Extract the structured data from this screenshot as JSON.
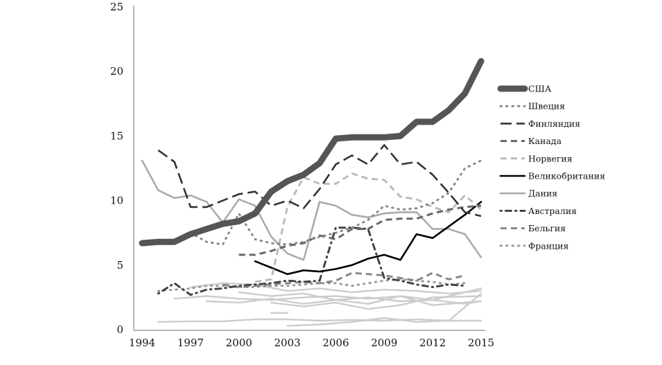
{
  "chart_data": {
    "type": "line",
    "title": "",
    "xlabel": "",
    "ylabel": "",
    "xlim": [
      1994,
      2015
    ],
    "ylim": [
      0,
      25
    ],
    "x_ticks": [
      "1994",
      "1997",
      "2000",
      "2003",
      "2006",
      "2009",
      "2012",
      "2015"
    ],
    "y_ticks": [
      "0",
      "5",
      "10",
      "15",
      "20",
      "25"
    ],
    "grid": false,
    "legend_position": "right",
    "series": [
      {
        "name": "США",
        "color": "#555555",
        "style": "thick-solid",
        "x": [
          1994,
          1995,
          1996,
          1997,
          1998,
          1999,
          2000,
          2001,
          2002,
          2003,
          2004,
          2005,
          2006,
          2007,
          2008,
          2009,
          2010,
          2011,
          2012,
          2013,
          2014,
          2015
        ],
        "y": [
          6.7,
          6.8,
          6.8,
          7.4,
          7.8,
          8.2,
          8.4,
          9.0,
          10.7,
          11.5,
          12.0,
          12.9,
          14.8,
          14.9,
          14.9,
          14.9,
          15.0,
          16.1,
          16.1,
          17.0,
          18.3,
          20.8
        ]
      },
      {
        "name": "Швеция",
        "color": "#888888",
        "style": "dotted",
        "x": [
          1997,
          1998,
          1999,
          2000,
          2001,
          2002,
          2003,
          2004,
          2005,
          2006,
          2007,
          2008,
          2009,
          2010,
          2011,
          2012,
          2013,
          2014,
          2015
        ],
        "y": [
          7.5,
          6.8,
          6.6,
          9.0,
          7.0,
          6.7,
          6.6,
          6.8,
          7.2,
          7.5,
          7.9,
          8.5,
          9.6,
          9.3,
          9.4,
          9.8,
          10.6,
          12.5,
          13.1
        ]
      },
      {
        "name": "Финляндия",
        "color": "#333333",
        "style": "long-dash",
        "x": [
          1995,
          1996,
          1997,
          1998,
          1999,
          2000,
          2001,
          2002,
          2003,
          2004,
          2005,
          2006,
          2007,
          2008,
          2009,
          2010,
          2011,
          2012,
          2013,
          2014,
          2015
        ],
        "y": [
          13.9,
          13.0,
          9.5,
          9.5,
          10.0,
          10.5,
          10.7,
          9.6,
          10.0,
          9.4,
          10.9,
          12.8,
          13.5,
          12.8,
          14.3,
          12.8,
          13.0,
          12.0,
          10.6,
          9.1,
          8.8
        ]
      },
      {
        "name": "Канада",
        "color": "#666666",
        "style": "dash",
        "x": [
          2000,
          2001,
          2002,
          2003,
          2004,
          2005,
          2006,
          2007,
          2008,
          2009,
          2010,
          2011,
          2012,
          2013,
          2014,
          2015
        ],
        "y": [
          5.8,
          5.8,
          6.1,
          6.5,
          6.7,
          7.3,
          7.0,
          7.8,
          7.8,
          8.5,
          8.6,
          8.6,
          9.0,
          9.3,
          9.5,
          9.6
        ]
      },
      {
        "name": "Норвегия",
        "color": "#bbbbbb",
        "style": "dash",
        "x": [
          2001,
          2002,
          2003,
          2004,
          2005,
          2006,
          2007,
          2008,
          2009,
          2010,
          2011,
          2012,
          2013,
          2014,
          2015
        ],
        "y": [
          3.7,
          3.9,
          9.5,
          11.8,
          11.3,
          11.3,
          12.1,
          11.7,
          11.6,
          10.3,
          10.1,
          9.5,
          9.1,
          10.4,
          9.3
        ]
      },
      {
        "name": "Великобритания",
        "color": "#000000",
        "style": "solid",
        "x": [
          2001,
          2002,
          2003,
          2004,
          2005,
          2006,
          2007,
          2008,
          2009,
          2010,
          2011,
          2012,
          2013,
          2014,
          2015
        ],
        "y": [
          5.3,
          4.8,
          4.3,
          4.6,
          4.5,
          4.7,
          5.0,
          5.5,
          5.8,
          5.4,
          7.4,
          7.1,
          8.0,
          8.9,
          9.9
        ]
      },
      {
        "name": "Дания",
        "color": "#aaaaaa",
        "style": "solid",
        "x": [
          1994,
          1995,
          1996,
          1997,
          1998,
          1999,
          2000,
          2001,
          2002,
          2003,
          2004,
          2005,
          2006,
          2007,
          2008,
          2009,
          2010,
          2011,
          2012,
          2013,
          2014,
          2015
        ],
        "y": [
          13.1,
          10.8,
          10.2,
          10.4,
          9.9,
          8.3,
          10.1,
          9.6,
          7.2,
          5.9,
          5.4,
          9.9,
          9.6,
          8.9,
          8.7,
          9.0,
          9.1,
          9.1,
          7.8,
          7.8,
          7.4,
          5.6
        ]
      },
      {
        "name": "Австралия",
        "color": "#444444",
        "style": "dash-dot",
        "x": [
          1995,
          1996,
          1997,
          1998,
          1999,
          2000,
          2001,
          2002,
          2003,
          2004,
          2005,
          2006,
          2007,
          2008,
          2009,
          2010,
          2011,
          2012,
          2013,
          2014
        ],
        "y": [
          2.8,
          3.6,
          2.7,
          3.1,
          3.2,
          3.4,
          3.5,
          3.6,
          3.8,
          3.7,
          3.8,
          7.9,
          7.9,
          7.8,
          4.0,
          3.8,
          3.5,
          3.3,
          3.5,
          3.4
        ]
      },
      {
        "name": "Бельгия",
        "color": "#888888",
        "style": "dash",
        "x": [
          1999,
          2000,
          2001,
          2002,
          2003,
          2004,
          2005,
          2006,
          2007,
          2008,
          2009,
          2010,
          2011,
          2012,
          2013,
          2014
        ],
        "y": [
          3.5,
          3.3,
          3.4,
          3.5,
          3.6,
          3.7,
          3.6,
          3.8,
          4.4,
          4.3,
          4.2,
          4.0,
          3.8,
          4.4,
          3.9,
          4.2
        ]
      },
      {
        "name": "Франция",
        "color": "#999999",
        "style": "dotted",
        "x": [
          1995,
          1996,
          1997,
          1998,
          1999,
          2000,
          2001,
          2002,
          2003,
          2004,
          2005,
          2006,
          2007,
          2008,
          2009,
          2010,
          2011,
          2012,
          2013,
          2014
        ],
        "y": [
          3.0,
          3.1,
          3.2,
          3.4,
          3.4,
          3.3,
          3.3,
          3.4,
          3.4,
          3.5,
          3.6,
          3.6,
          3.4,
          3.6,
          3.8,
          3.9,
          3.8,
          3.7,
          3.5,
          3.6
        ]
      }
    ],
    "unlabeled_series": [
      {
        "color": "#cccccc",
        "x": [
          1996,
          1998,
          2000,
          2002,
          2004,
          2006,
          2008,
          2010,
          2012,
          2015
        ],
        "y": [
          2.4,
          2.6,
          2.4,
          2.3,
          2.5,
          2.6,
          2.4,
          2.6,
          2.3,
          3.2
        ]
      },
      {
        "color": "#cccccc",
        "x": [
          1997,
          1999,
          2001,
          2003,
          2005,
          2007,
          2009,
          2011,
          2013,
          2015
        ],
        "y": [
          3.3,
          3.6,
          3.5,
          3.0,
          3.2,
          2.9,
          3.1,
          3.0,
          2.8,
          3.0
        ]
      },
      {
        "color": "#cccccc",
        "x": [
          2000,
          2002,
          2004,
          2006,
          2008,
          2010,
          2012,
          2014,
          2015
        ],
        "y": [
          2.9,
          2.6,
          2.8,
          2.3,
          2.5,
          2.2,
          2.3,
          2.0,
          2.2
        ]
      },
      {
        "color": "#cccccc",
        "x": [
          1998,
          2000,
          2002,
          2004,
          2006,
          2008,
          2010,
          2012,
          2015
        ],
        "y": [
          2.2,
          2.1,
          2.4,
          2.0,
          2.3,
          2.0,
          2.6,
          1.9,
          2.2
        ]
      },
      {
        "color": "#cccccc",
        "x": [
          2002,
          2004,
          2006,
          2008,
          2010,
          2012,
          2015
        ],
        "y": [
          2.1,
          1.8,
          2.1,
          1.6,
          1.9,
          2.5,
          2.6
        ]
      },
      {
        "color": "#cccccc",
        "x": [
          1995,
          1997,
          1999,
          2001,
          2003,
          2005,
          2007,
          2009,
          2011,
          2013,
          2015
        ],
        "y": [
          0.6,
          0.65,
          0.65,
          0.8,
          0.8,
          0.7,
          0.75,
          0.7,
          0.8,
          0.7,
          0.7
        ]
      },
      {
        "color": "#cccccc",
        "x": [
          2003,
          2005,
          2007,
          2009,
          2011,
          2013,
          2015
        ],
        "y": [
          0.3,
          0.4,
          0.6,
          0.9,
          0.6,
          0.7,
          2.8
        ]
      },
      {
        "color": "#cccccc",
        "x": [
          2002,
          2003
        ],
        "y": [
          1.3,
          1.3
        ]
      }
    ]
  }
}
